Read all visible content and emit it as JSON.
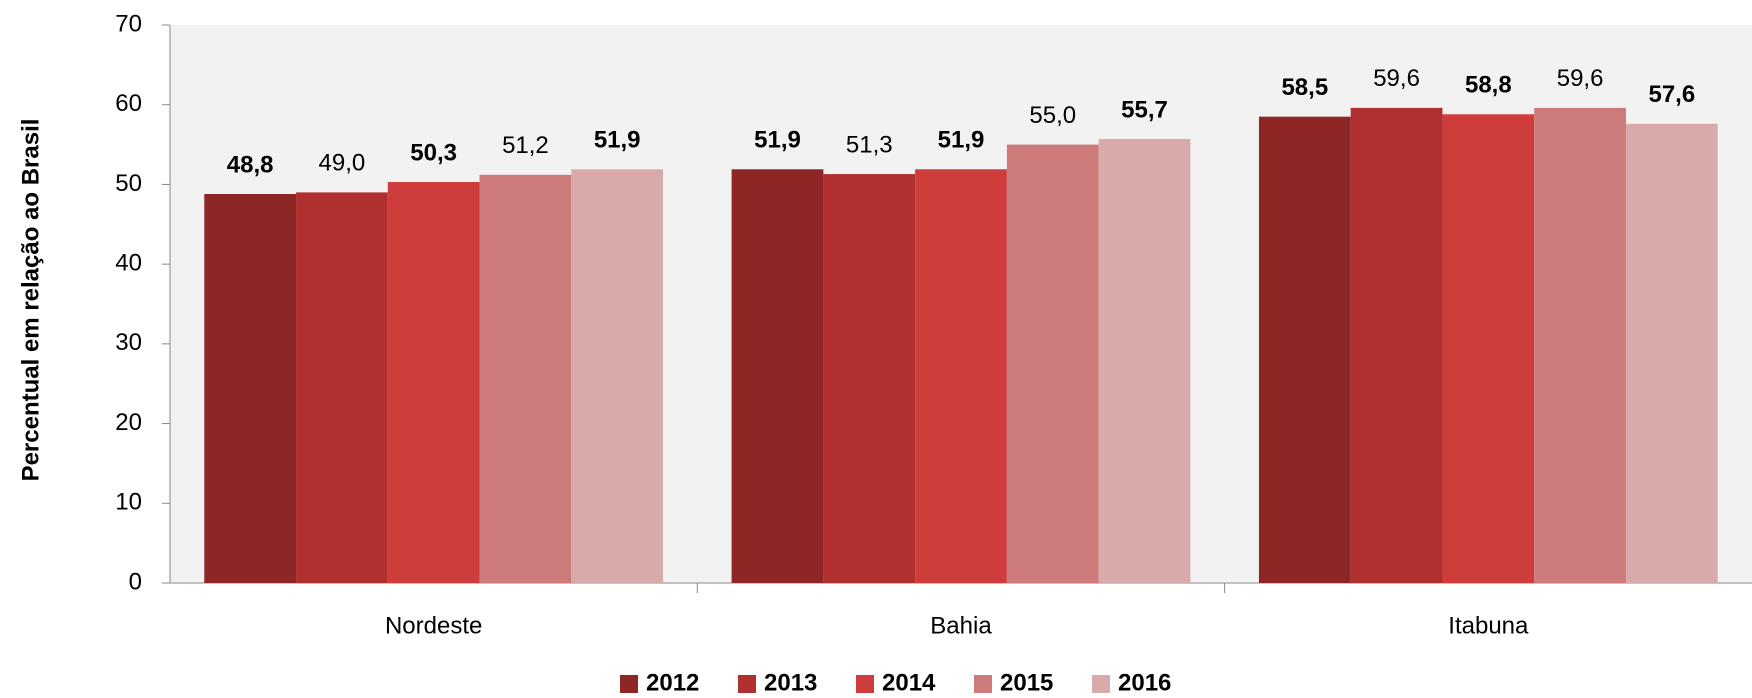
{
  "chart_data": {
    "type": "bar",
    "y_label": "Percentual em relação ao Brasil",
    "categories": [
      "Nordeste",
      "Bahia",
      "Itabuna"
    ],
    "series": [
      {
        "name": "2012",
        "color": "#8e2626",
        "label_weight": "bold",
        "values": [
          48.8,
          51.9,
          58.5
        ],
        "value_labels": [
          "48,8",
          "51,9",
          "58,5"
        ]
      },
      {
        "name": "2013",
        "color": "#b02f2f",
        "label_weight": "normal",
        "values": [
          49.0,
          51.3,
          59.6
        ],
        "value_labels": [
          "49,0",
          "51,3",
          "59,6"
        ]
      },
      {
        "name": "2014",
        "color": "#cf3c3c",
        "label_weight": "bold",
        "values": [
          50.3,
          51.9,
          58.8
        ],
        "value_labels": [
          "50,3",
          "51,9",
          "58,8"
        ]
      },
      {
        "name": "2015",
        "color": "#cd7a7a",
        "label_weight": "normal",
        "values": [
          51.2,
          55.0,
          59.6
        ],
        "value_labels": [
          "51,2",
          "55,0",
          "59,6"
        ]
      },
      {
        "name": "2016",
        "color": "#d8aaaa",
        "label_weight": "bold",
        "values": [
          51.9,
          55.7,
          57.6
        ],
        "value_labels": [
          "51,9",
          "55,7",
          "57,6"
        ]
      }
    ],
    "ylim": [
      0,
      70
    ],
    "yticks": [
      0,
      10,
      20,
      30,
      40,
      50,
      60,
      70
    ],
    "grid": false,
    "legend": "bottom"
  }
}
